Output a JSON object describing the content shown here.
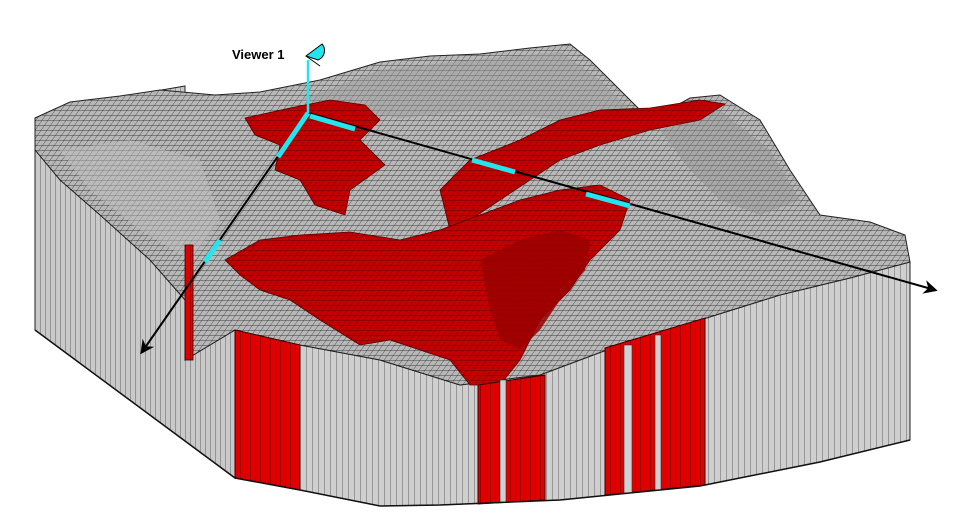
{
  "viewer": {
    "label": "Viewer 1",
    "icon": "camera-eye-icon"
  },
  "colors": {
    "background": "#ffffff",
    "block_face": "#c8c8c8",
    "block_top": "#a9a9a9",
    "block_dark": "#7a7a7a",
    "grid_line": "#222222",
    "highlight": "#cc0000",
    "highlight_dark": "#7a0000",
    "axis": "#000000",
    "axis_marker": "#22e5ee"
  }
}
